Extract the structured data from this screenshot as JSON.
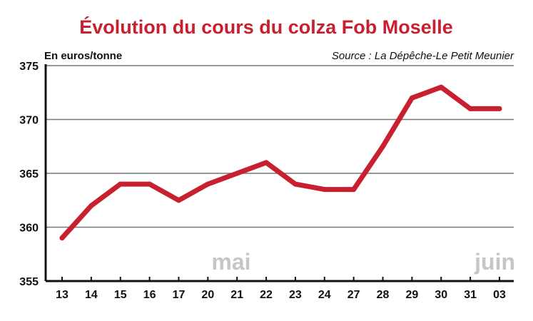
{
  "chart_data": {
    "type": "line",
    "title": "Évolution du cours du colza Fob Moselle",
    "unit_label": "En euros/tonne",
    "source": "Source : La Dépêche-Le Petit Meunier",
    "categories": [
      "13",
      "14",
      "15",
      "16",
      "17",
      "20",
      "21",
      "22",
      "23",
      "24",
      "27",
      "28",
      "29",
      "30",
      "31",
      "03"
    ],
    "series": [
      {
        "values": [
          359,
          362,
          364,
          364,
          362.5,
          364,
          365,
          366,
          364,
          363.5,
          363.5,
          367.5,
          372,
          373,
          371,
          371
        ]
      }
    ],
    "month_labels": [
      "mai",
      "juin"
    ],
    "y_ticks": [
      355,
      360,
      365,
      370,
      375
    ],
    "ylim": [
      355,
      375
    ],
    "grid": true,
    "legend": "none",
    "colors": {
      "title": "#c8202f",
      "line": "#c8202f",
      "grid": "#777777",
      "axis": "#111111",
      "month": "#c6c6c6"
    }
  }
}
